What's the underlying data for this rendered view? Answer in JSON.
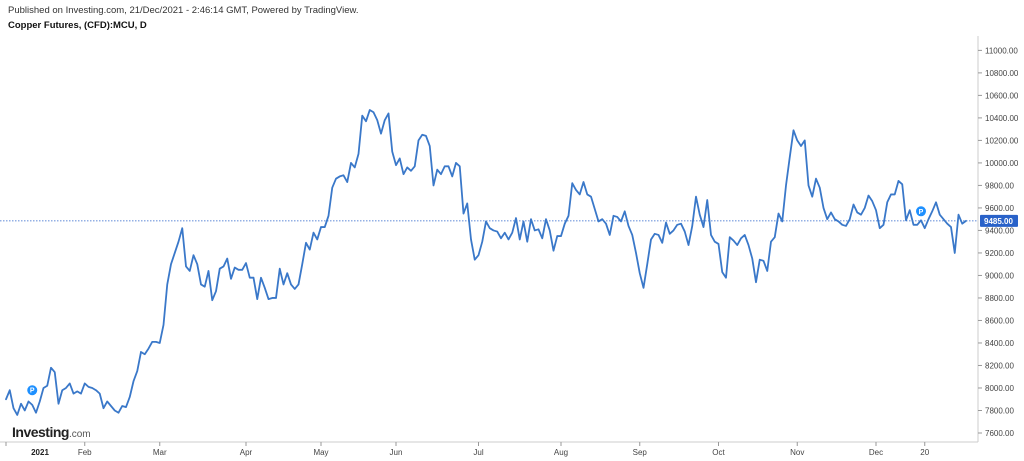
{
  "header": {
    "published": "Published on Investing.com, 21/Dec/2021 - 2:46:14 GMT, Powered by TradingView.",
    "title": "Copper Futures, (CFD):MCU, D"
  },
  "logo": {
    "brand": "Investing",
    "suffix": ".com"
  },
  "colors": {
    "line": "#3a78c9",
    "axis": "#cccccc",
    "last_label_bg": "#2962c9",
    "marker": "#1e90ff",
    "text": "#444444"
  },
  "chart_data": {
    "type": "line",
    "title": "Copper Futures, (CFD):MCU, D",
    "xlabel": "",
    "ylabel": "",
    "ylim": [
      7520,
      11110
    ],
    "y_ticks": [
      "11000.00",
      "10800.00",
      "10600.00",
      "10400.00",
      "10200.00",
      "10000.00",
      "9800.00",
      "9600.00",
      "9400.00",
      "9200.00",
      "9000.00",
      "8800.00",
      "8600.00",
      "8400.00",
      "8200.00",
      "8000.00",
      "7800.00",
      "7600.00"
    ],
    "y_tick_values": [
      11000,
      10800,
      10600,
      10400,
      10200,
      10000,
      9800,
      9600,
      9400,
      9200,
      9000,
      8800,
      8600,
      8400,
      8200,
      8000,
      7800,
      7600
    ],
    "x_ticks": [
      {
        "label": "2021",
        "idx": 0,
        "bold": true
      },
      {
        "label": "Feb",
        "idx": 21
      },
      {
        "label": "Mar",
        "idx": 41
      },
      {
        "label": "Apr",
        "idx": 64
      },
      {
        "label": "May",
        "idx": 84
      },
      {
        "label": "Jun",
        "idx": 104
      },
      {
        "label": "Jul",
        "idx": 126
      },
      {
        "label": "Aug",
        "idx": 148
      },
      {
        "label": "Sep",
        "idx": 169
      },
      {
        "label": "Oct",
        "idx": 190
      },
      {
        "label": "Nov",
        "idx": 211
      },
      {
        "label": "Dec",
        "idx": 232
      },
      {
        "label": "20",
        "idx": 245
      }
    ],
    "last_value": 9485,
    "last_value_label": "9485.00",
    "markers": [
      {
        "idx": 7,
        "value": 7980,
        "label": "P"
      },
      {
        "idx": 244,
        "value": 9570,
        "label": "P"
      }
    ],
    "series": [
      {
        "values": [
          7900,
          7980,
          7820,
          7760,
          7860,
          7800,
          7880,
          7850,
          7780,
          7880,
          8000,
          8020,
          8180,
          8140,
          7860,
          7980,
          8000,
          8040,
          7950,
          7970,
          7950,
          8040,
          8010,
          8000,
          7980,
          7950,
          7820,
          7880,
          7840,
          7800,
          7780,
          7840,
          7830,
          7920,
          8060,
          8150,
          8320,
          8300,
          8350,
          8410,
          8410,
          8400,
          8560,
          8920,
          9100,
          9200,
          9300,
          9420,
          9080,
          9040,
          9180,
          9100,
          8920,
          8900,
          9040,
          8780,
          8860,
          9060,
          9080,
          9150,
          8970,
          9070,
          9050,
          9050,
          9110,
          8980,
          8980,
          8790,
          8980,
          8890,
          8790,
          8800,
          8800,
          9060,
          8920,
          9020,
          8920,
          8880,
          8920,
          9100,
          9290,
          9230,
          9380,
          9320,
          9430,
          9430,
          9530,
          9780,
          9860,
          9880,
          9890,
          9830,
          10000,
          9960,
          10080,
          10420,
          10370,
          10470,
          10450,
          10380,
          10260,
          10380,
          10440,
          10100,
          9980,
          10040,
          9900,
          9960,
          9930,
          9970,
          10200,
          10250,
          10240,
          10150,
          9800,
          9940,
          9900,
          9970,
          9970,
          9880,
          10000,
          9970,
          9550,
          9640,
          9320,
          9140,
          9180,
          9300,
          9480,
          9420,
          9400,
          9390,
          9330,
          9380,
          9320,
          9380,
          9510,
          9320,
          9480,
          9300,
          9500,
          9400,
          9410,
          9330,
          9500,
          9400,
          9220,
          9350,
          9350,
          9460,
          9530,
          9820,
          9760,
          9720,
          9830,
          9720,
          9700,
          9590,
          9480,
          9500,
          9460,
          9360,
          9530,
          9520,
          9480,
          9570,
          9440,
          9360,
          9200,
          9020,
          8890,
          9100,
          9320,
          9370,
          9360,
          9290,
          9470,
          9370,
          9400,
          9450,
          9460,
          9390,
          9270,
          9440,
          9700,
          9540,
          9430,
          9670,
          9360,
          9300,
          9280,
          9030,
          8980,
          9340,
          9310,
          9270,
          9330,
          9360,
          9270,
          9150,
          8940,
          9140,
          9130,
          9040,
          9300,
          9340,
          9550,
          9480,
          9800,
          10050,
          10290,
          10200,
          10150,
          10200,
          9800,
          9700,
          9860,
          9780,
          9600,
          9500,
          9560,
          9500,
          9480,
          9450,
          9440,
          9500,
          9630,
          9560,
          9540,
          9600,
          9710,
          9660,
          9580,
          9420,
          9450,
          9650,
          9720,
          9720,
          9840,
          9810,
          9490,
          9580,
          9450,
          9450,
          9490,
          9420,
          9500,
          9570,
          9650,
          9540,
          9500,
          9460,
          9430,
          9200,
          9540,
          9460,
          9485
        ]
      }
    ]
  }
}
